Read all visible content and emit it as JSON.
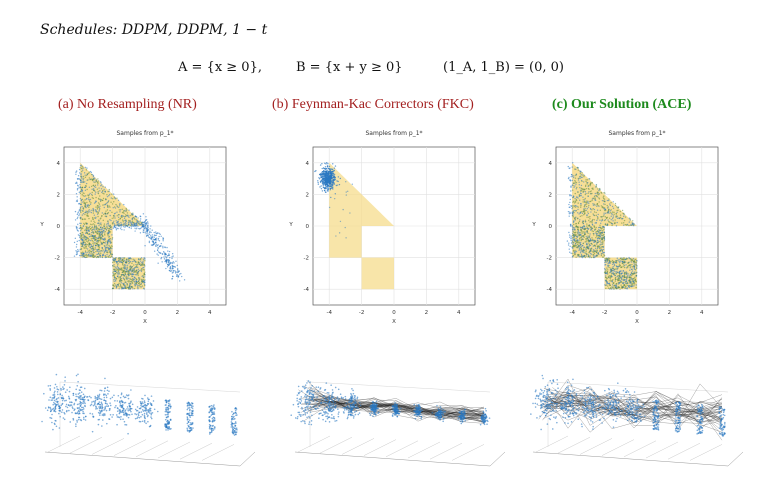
{
  "header": {
    "schedules": "Schedules: DDPM, DDPM, 1 − t",
    "eq_a": "A = {x ≥ 0},",
    "eq_b": "B = {x + y ≥ 0}",
    "eq_c": "(1_A, 1_B) = (0, 0)"
  },
  "panels": [
    {
      "title": "(a) No Resampling (NR)",
      "color": "#a31f1f"
    },
    {
      "title": "(b) Feynman-Kac Correctors (FKC)",
      "color": "#a31f1f"
    },
    {
      "title": "(c) Our Solution (ACE)",
      "color": "#1d8a1d"
    }
  ],
  "chart_data": [
    {
      "type": "scatter",
      "title": "Samples from p_1*",
      "xlabel": "X",
      "ylabel": "Y",
      "xlim": [
        -5,
        5
      ],
      "ylim": [
        -5,
        5
      ],
      "xticks": [
        "-4",
        "-2",
        "0",
        "2",
        "4"
      ],
      "yticks": [
        "4",
        "2",
        "0",
        "-2",
        "-4"
      ],
      "grid": true,
      "target_color": "#f6dc8c",
      "sample_color": "#2a78c2"
    },
    {
      "type": "scatter",
      "title": "Samples from p_1*",
      "xlabel": "X",
      "ylabel": "Y",
      "xlim": [
        -5,
        5
      ],
      "ylim": [
        -5,
        5
      ],
      "xticks": [
        "-4",
        "-2",
        "0",
        "2",
        "4"
      ],
      "yticks": [
        "4",
        "2",
        "0",
        "-2",
        "-4"
      ],
      "grid": true,
      "target_color": "#f6dc8c",
      "sample_color": "#2a78c2"
    },
    {
      "type": "scatter",
      "title": "Samples from p_1*",
      "xlabel": "X",
      "ylabel": "Y",
      "xlim": [
        -5,
        5
      ],
      "ylim": [
        -5,
        5
      ],
      "xticks": [
        "-4",
        "-2",
        "0",
        "2",
        "4"
      ],
      "yticks": [
        "4",
        "2",
        "0",
        "-2",
        "-4"
      ],
      "grid": true,
      "target_color": "#f6dc8c",
      "sample_color": "#2a78c2"
    }
  ]
}
